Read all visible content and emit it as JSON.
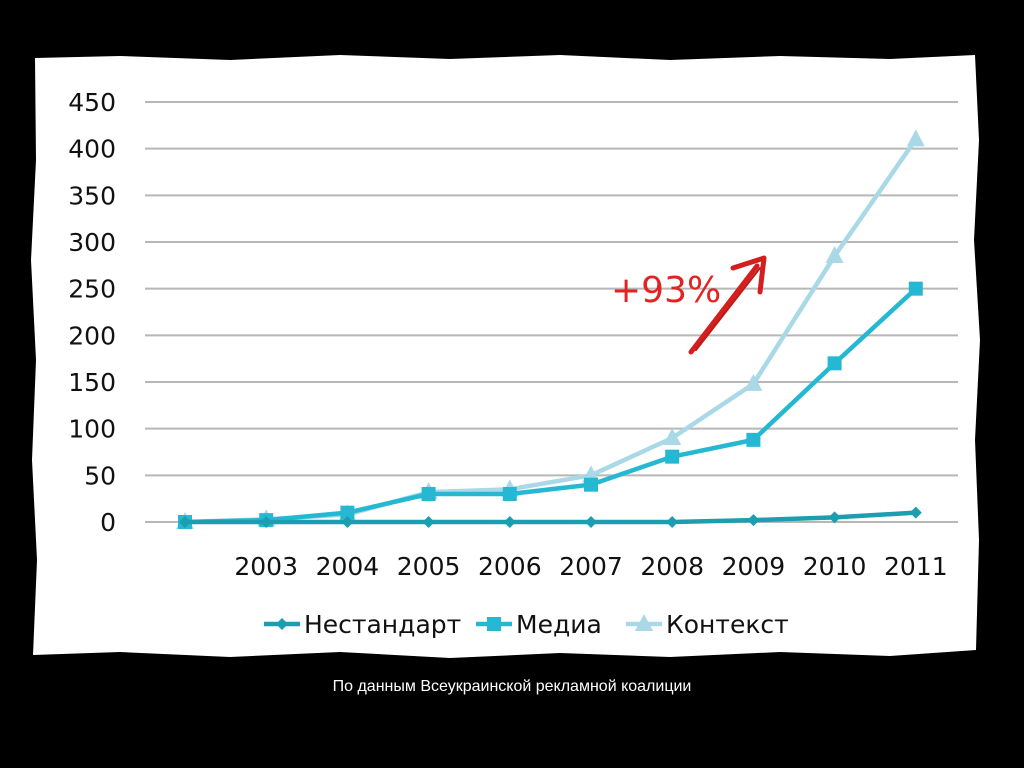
{
  "slide": {
    "caption": "По данным Всеукраинской рекламной коалиции",
    "annotation": "+93%"
  },
  "colors": {
    "background": "#000000",
    "paper": "#ffffff",
    "grid": "#b7b7b7",
    "annotation": "#e32222",
    "series": [
      "#1a9eb0",
      "#25b8d3",
      "#a9d9e6"
    ]
  },
  "chart_data": {
    "type": "line",
    "categories": [
      "",
      "2003",
      "2004",
      "2005",
      "2006",
      "2007",
      "2008",
      "2009",
      "2010",
      "2011"
    ],
    "ylim": [
      0,
      450
    ],
    "yticks": [
      0,
      50,
      100,
      150,
      200,
      250,
      300,
      350,
      400,
      450
    ],
    "grid": true,
    "legend_position": "bottom",
    "series": [
      {
        "name": "Нестандарт",
        "marker": "diamond",
        "values": [
          0,
          0,
          0,
          0,
          0,
          0,
          0,
          2,
          5,
          10
        ]
      },
      {
        "name": "Медиа",
        "marker": "square",
        "values": [
          0,
          2,
          10,
          30,
          30,
          40,
          70,
          88,
          170,
          250
        ]
      },
      {
        "name": "Контекст",
        "marker": "triangle",
        "values": [
          0,
          3,
          8,
          32,
          35,
          50,
          90,
          148,
          285,
          410
        ]
      }
    ]
  }
}
